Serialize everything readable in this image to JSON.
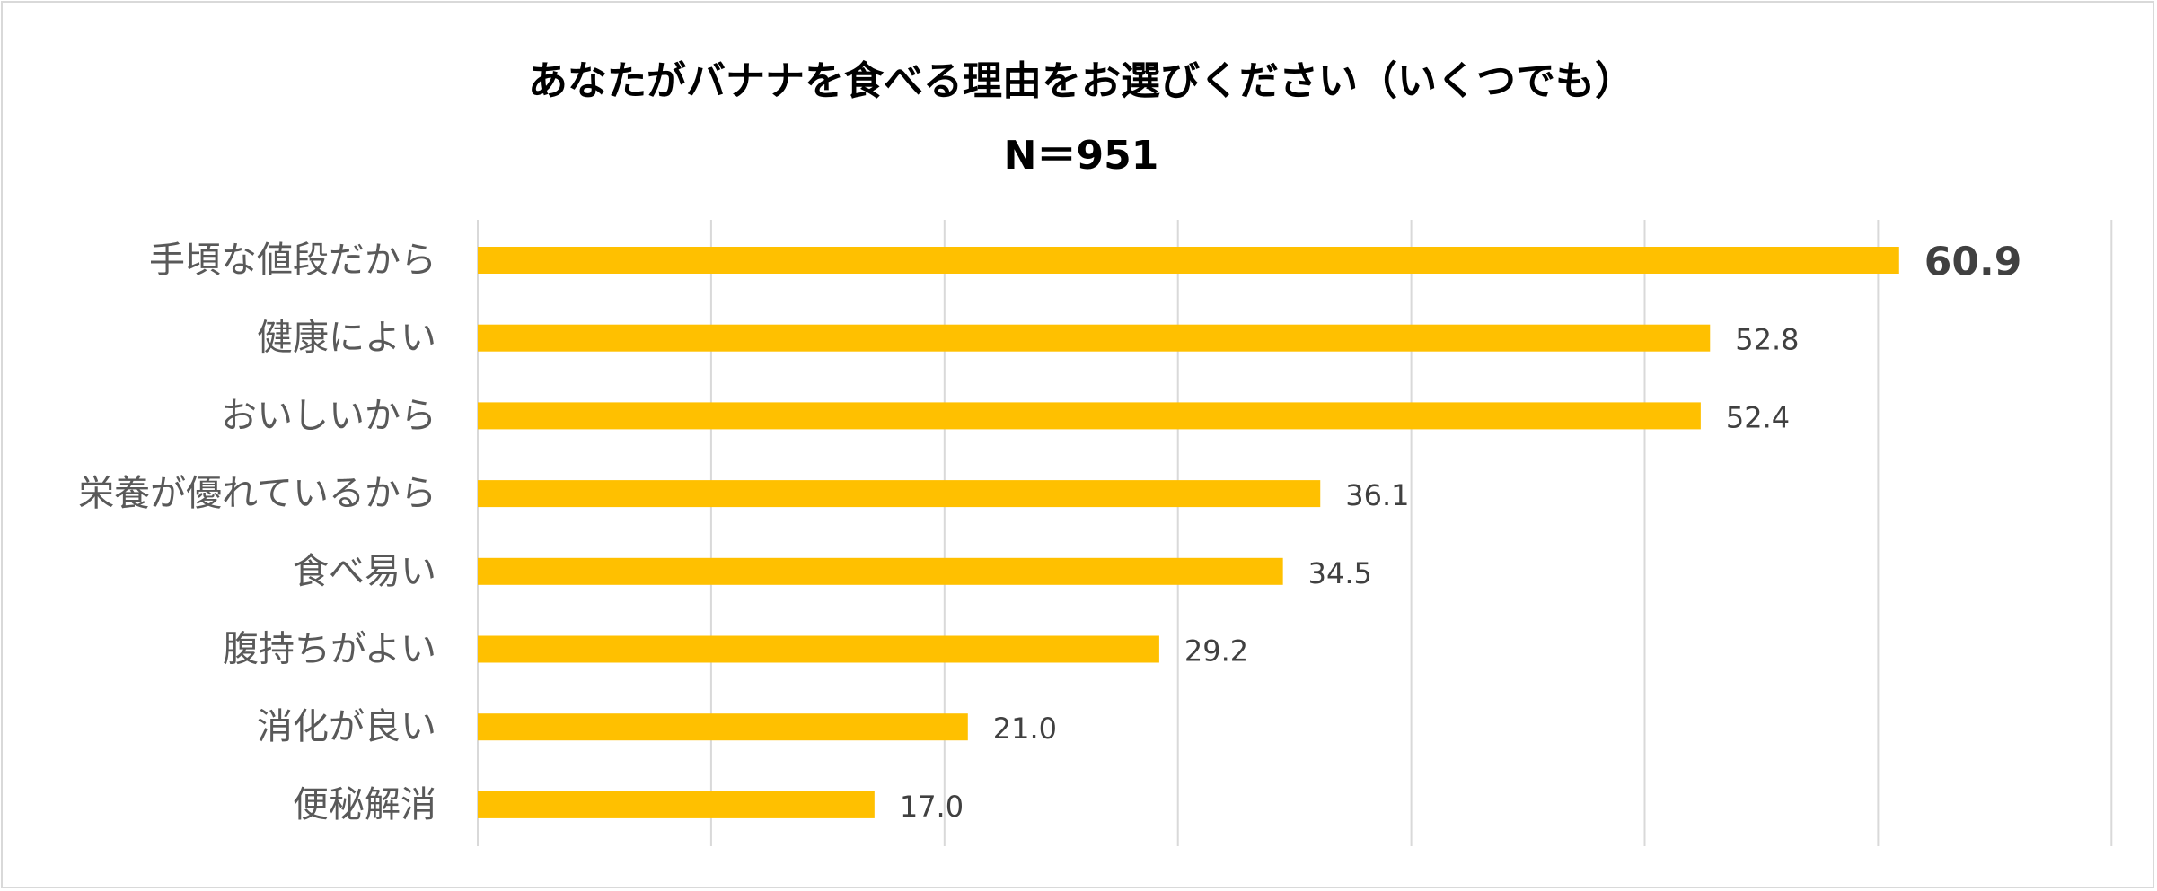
{
  "chart_data": {
    "type": "bar",
    "orientation": "horizontal",
    "title": "あなたがバナナを食べる理由をお選びください（いくつでも）",
    "subtitle": "N＝951",
    "categories": [
      "手頃な値段だから",
      "健康によい",
      "おいしいから",
      "栄養が優れているから",
      "食べ易い",
      "腹持ちがよい",
      "消化が良い",
      "便秘解消"
    ],
    "values": [
      60.9,
      52.8,
      52.4,
      36.1,
      34.5,
      29.2,
      21.0,
      17.0
    ],
    "value_labels": [
      "60.9",
      "52.8",
      "52.4",
      "36.1",
      "34.5",
      "29.2",
      "21.0",
      "17.0"
    ],
    "xlim": [
      0,
      70
    ],
    "grid": true,
    "legend": "none",
    "bar_color": "#FFC000",
    "highlight_index": 0
  }
}
